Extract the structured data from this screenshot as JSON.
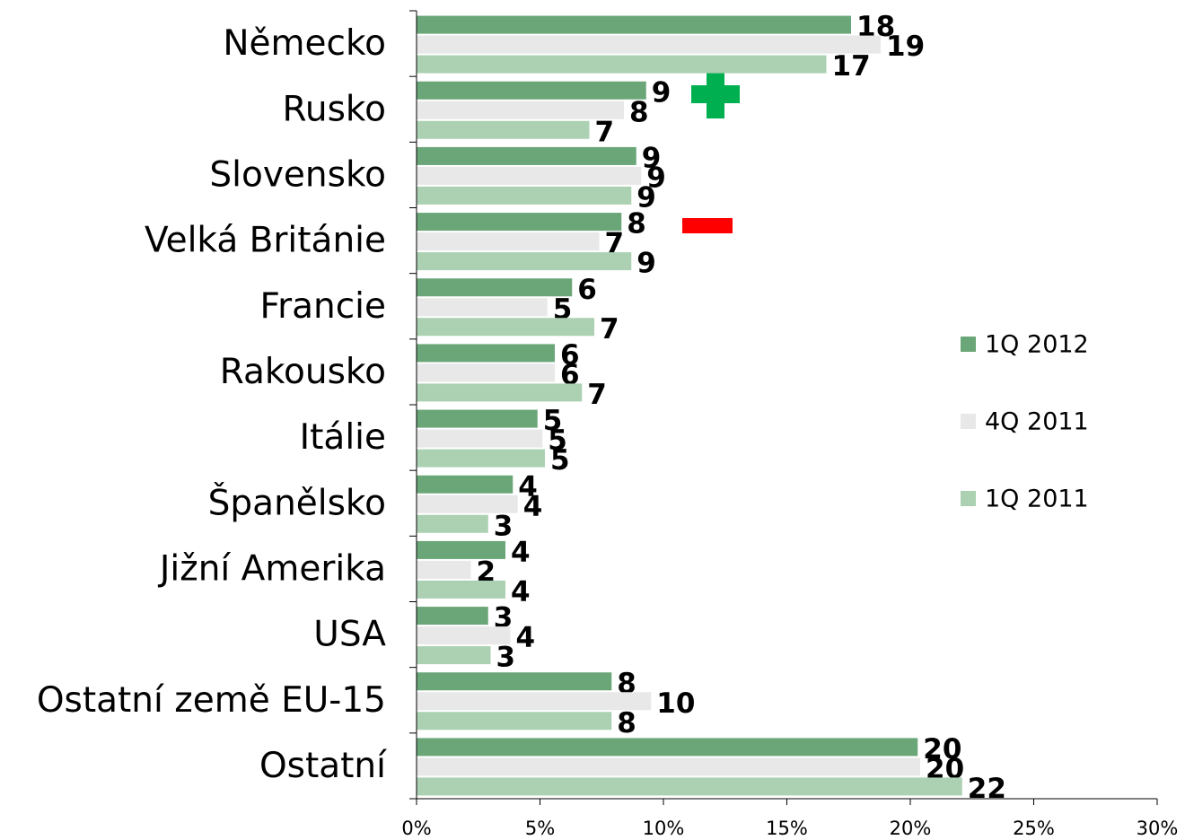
{
  "chart_data": {
    "type": "hbar",
    "categories": [
      "Německo",
      "Rusko",
      "Slovensko",
      "Velká Británie",
      "Francie",
      "Rakousko",
      "Itálie",
      "Španělsko",
      "Jižní Amerika",
      "USA",
      "Ostatní země EU-15",
      "Ostatní"
    ],
    "series": [
      {
        "name": "1Q 2012",
        "color": "#6aa678",
        "values": [
          17.6,
          9.3,
          8.9,
          8.3,
          6.3,
          5.6,
          4.9,
          3.9,
          3.6,
          2.9,
          7.9,
          20.3
        ],
        "value_labels": [
          "18",
          "9",
          "9",
          "8",
          "6",
          "6",
          "5",
          "4",
          "4",
          "3",
          "8",
          "20"
        ]
      },
      {
        "name": "4Q 2011",
        "color": "#e8e8e8",
        "values": [
          18.8,
          8.4,
          9.1,
          7.4,
          5.3,
          5.6,
          5.1,
          4.1,
          2.2,
          3.8,
          9.5,
          20.4
        ],
        "value_labels": [
          "19",
          "8",
          "9",
          "7",
          "5",
          "6",
          "5",
          "4",
          "2",
          "4",
          "10",
          "20"
        ]
      },
      {
        "name": "1Q 2011",
        "color": "#acd1b2",
        "values": [
          16.6,
          7.0,
          8.7,
          8.7,
          7.2,
          6.7,
          5.2,
          2.9,
          3.6,
          3.0,
          7.9,
          22.1
        ],
        "value_labels": [
          "17",
          "7",
          "9",
          "9",
          "7",
          "7",
          "5",
          "3",
          "4",
          "3",
          "8",
          "22"
        ]
      }
    ],
    "xlim": [
      0,
      30
    ],
    "xticks": [
      {
        "value": 0,
        "label": "0%"
      },
      {
        "value": 5,
        "label": "5%"
      },
      {
        "value": 10,
        "label": "10%"
      },
      {
        "value": 15,
        "label": "15%"
      },
      {
        "value": 20,
        "label": "20%"
      },
      {
        "value": 25,
        "label": "25%"
      },
      {
        "value": 30,
        "label": "30%"
      }
    ],
    "legend": "right"
  }
}
